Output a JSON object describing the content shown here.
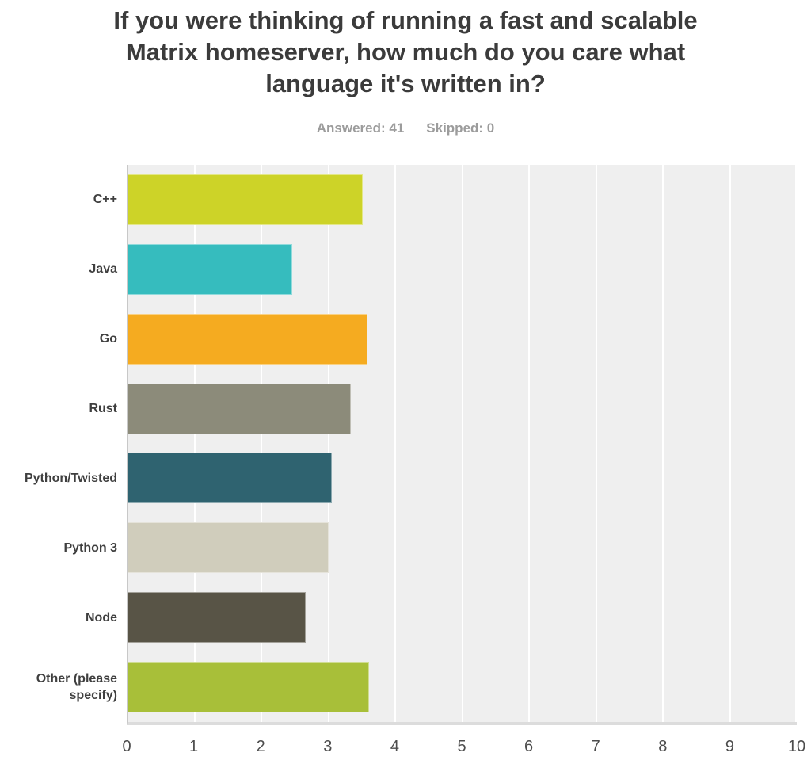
{
  "chart_data": {
    "type": "bar",
    "orientation": "horizontal",
    "title": "If you were thinking of running a fast and scalable Matrix homeserver, how much do you care what language it's written in?",
    "subtitle": {
      "answered": "Answered: 41",
      "skipped": "Skipped: 0"
    },
    "categories": [
      "C++",
      "Java",
      "Go",
      "Rust",
      "Python/Twisted",
      "Python 3",
      "Node",
      "Other (please specify)"
    ],
    "values": [
      3.51,
      2.46,
      3.59,
      3.34,
      3.05,
      3.0,
      2.66,
      3.61
    ],
    "bar_colors": [
      "#cdd328",
      "#36bcbe",
      "#f5ab20",
      "#8c8b7a",
      "#2f6370",
      "#d0cdbc",
      "#585446",
      "#a8bf39"
    ],
    "x_ticks": [
      "0",
      "1",
      "2",
      "3",
      "4",
      "5",
      "6",
      "7",
      "8",
      "9",
      "10"
    ],
    "xlim": [
      0,
      10
    ],
    "xlabel": "",
    "ylabel": "",
    "grid": true,
    "gridline_color": "#ffffff",
    "plot_background": "#efefef",
    "legend": "none",
    "title_color": "#3b3b3b",
    "subtitle_color": "#9c9c9c"
  }
}
